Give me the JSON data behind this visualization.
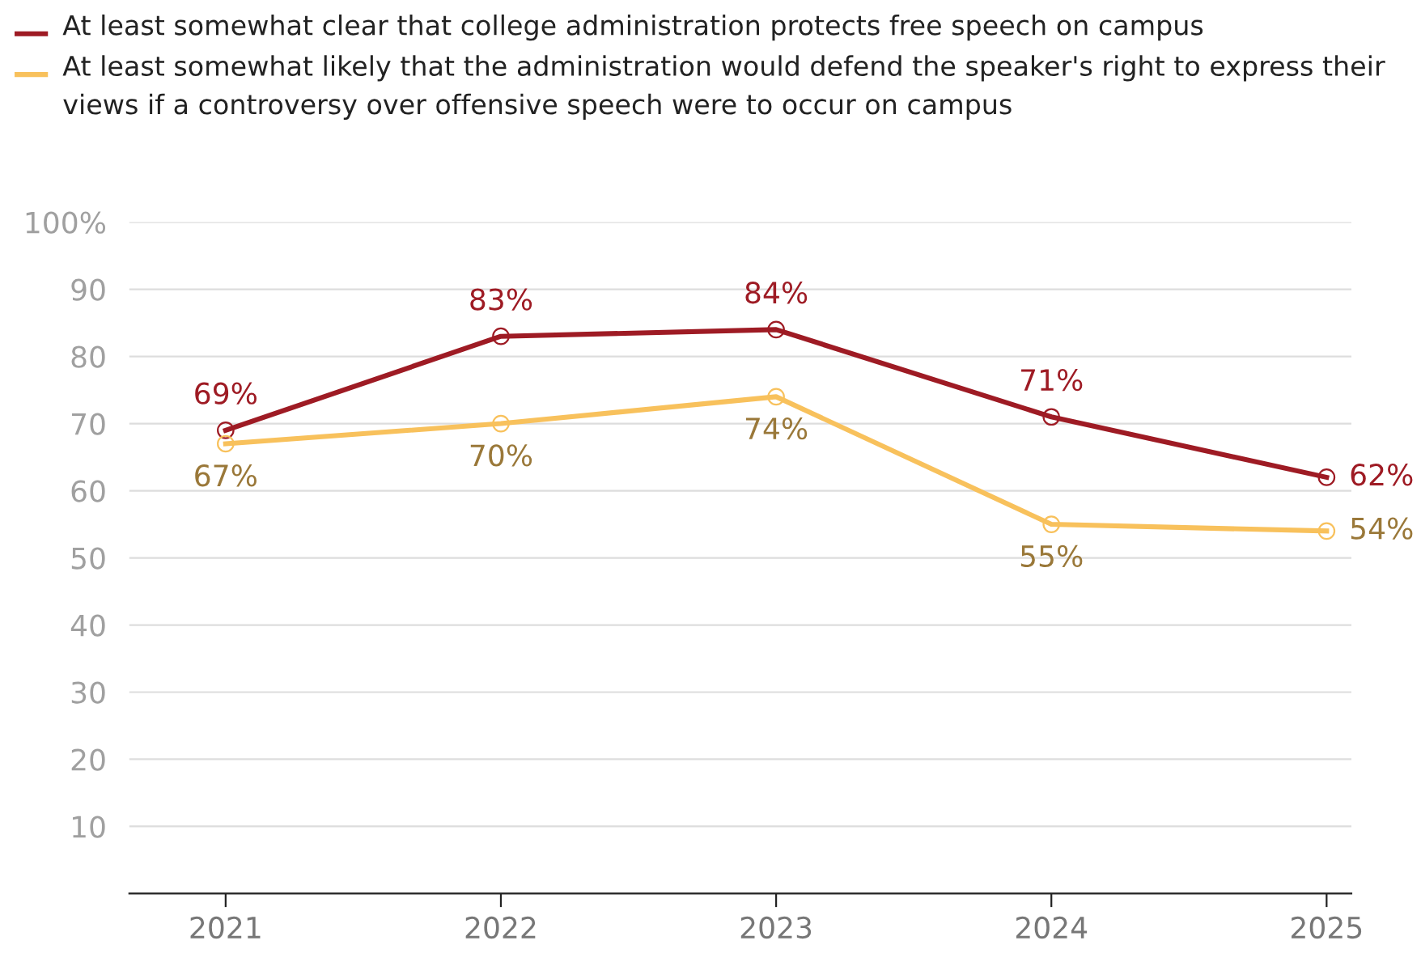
{
  "chart_data": {
    "type": "line",
    "categories": [
      "2021",
      "2022",
      "2023",
      "2024",
      "2025"
    ],
    "series": [
      {
        "name": "At least somewhat clear that college administration protects free speech on campus",
        "color": "#9e1b24",
        "values": [
          69,
          83,
          84,
          71,
          62
        ],
        "value_labels": [
          "69%",
          "83%",
          "84%",
          "71%",
          "62%"
        ]
      },
      {
        "name": "At least somewhat likely that the administration would defend the speaker's right to express their views if a controversy over offensive speech were to occur on campus",
        "color": "#f8c15c",
        "values": [
          67,
          70,
          74,
          55,
          54
        ],
        "value_labels": [
          "67%",
          "70%",
          "74%",
          "55%",
          "54%"
        ]
      }
    ],
    "ylim": [
      0,
      100
    ],
    "yticks": [
      10,
      20,
      30,
      40,
      50,
      60,
      70,
      80,
      90,
      {
        "value": 100,
        "label": "100%"
      }
    ],
    "grid": "y",
    "legend": "top left",
    "marker": "circle",
    "line_style": "solid"
  }
}
